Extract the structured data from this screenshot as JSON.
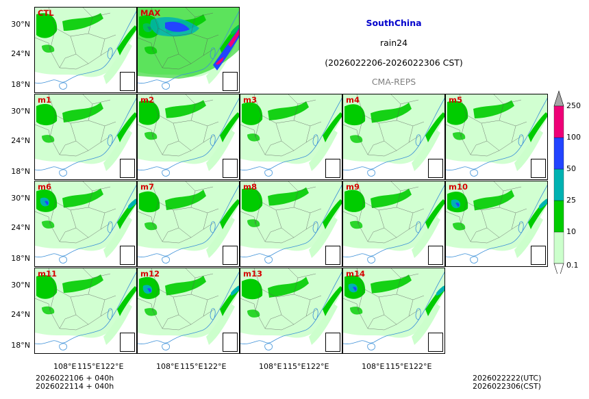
{
  "title": {
    "region": "SouthChina",
    "variable": "rain24",
    "period": "(2026022206-2026022306 CST)",
    "model": "CMA-REPS"
  },
  "colors": {
    "region": "#0000cc",
    "model": "#808080",
    "label": "#d40000",
    "lightgreen": "#ccffcc",
    "green": "#00cc00",
    "teal": "#00b2b2",
    "blue": "#2244ff",
    "magenta": "#ee0077",
    "gray": "#a6a6a6"
  },
  "panels": [
    {
      "label": "CTL",
      "intensity": 1
    },
    {
      "label": "MAX",
      "intensity": 3
    },
    {
      "label": "m1",
      "intensity": 1
    },
    {
      "label": "m2",
      "intensity": 1
    },
    {
      "label": "m3",
      "intensity": 1
    },
    {
      "label": "m4",
      "intensity": 1
    },
    {
      "label": "m5",
      "intensity": 1
    },
    {
      "label": "m6",
      "intensity": 2
    },
    {
      "label": "m7",
      "intensity": 1
    },
    {
      "label": "m8",
      "intensity": 1
    },
    {
      "label": "m9",
      "intensity": 1
    },
    {
      "label": "m10",
      "intensity": 2
    },
    {
      "label": "m11",
      "intensity": 1
    },
    {
      "label": "m12",
      "intensity": 2
    },
    {
      "label": "m13",
      "intensity": 1
    },
    {
      "label": "m14",
      "intensity": 2
    }
  ],
  "y_ticks": [
    "30°N",
    "24°N",
    "18°N"
  ],
  "x_ticks": [
    "108°E",
    "115°E",
    "122°E"
  ],
  "colorbar": {
    "levels": [
      "0.1",
      "10",
      "25",
      "50",
      "100",
      "250"
    ],
    "segments": [
      "#ccffcc",
      "#00cc00",
      "#00b2b2",
      "#2244ff",
      "#ee0077"
    ],
    "over": "#a6a6a6"
  },
  "footer": {
    "init_line1": "2026022106  +  040h",
    "init_line2": "2026022114  +  040h",
    "valid_utc": "2026022222(UTC)",
    "valid_cst": "2026022306(CST)"
  }
}
